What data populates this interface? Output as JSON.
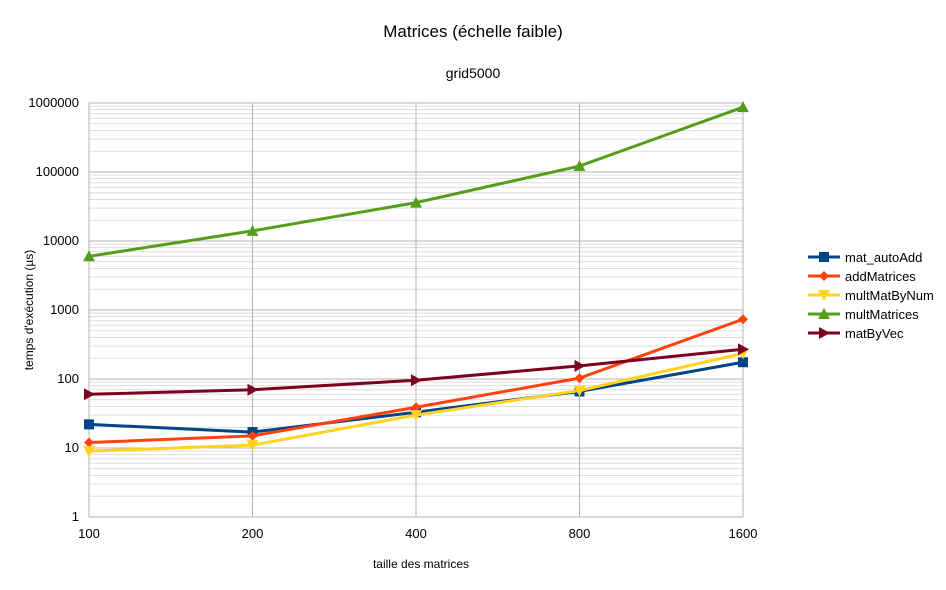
{
  "chart_data": {
    "type": "line",
    "title": "Matrices (échelle faible)",
    "subtitle": "grid5000",
    "xlabel": "taille des matrices",
    "ylabel": "temps d'exécution (µs)",
    "y_scale": "log",
    "ylim": [
      1,
      1000000
    ],
    "x_scale": "log2",
    "categories": [
      "100",
      "200",
      "400",
      "800",
      "1600"
    ],
    "y_ticks": [
      "1",
      "10",
      "100",
      "1000",
      "10000",
      "100000",
      "1000000"
    ],
    "grid": true,
    "legend_position": "right",
    "series": [
      {
        "name": "mat_autoAdd",
        "color": "#004586",
        "marker": "square",
        "values": [
          22,
          17,
          33,
          66,
          175
        ]
      },
      {
        "name": "addMatrices",
        "color": "#ff420e",
        "marker": "diamond",
        "values": [
          12,
          15,
          39,
          103,
          735
        ]
      },
      {
        "name": "multMatByNum",
        "color": "#ffd320",
        "marker": "triangle-down",
        "values": [
          9,
          11,
          30,
          68,
          235
        ]
      },
      {
        "name": "multMatrices",
        "color": "#579d1c",
        "marker": "triangle-up",
        "values": [
          6000,
          14000,
          36000,
          122000,
          870000
        ]
      },
      {
        "name": "matByVec",
        "color": "#7e0021",
        "marker": "triangle-right",
        "values": [
          60,
          70,
          96,
          155,
          270
        ]
      }
    ]
  }
}
